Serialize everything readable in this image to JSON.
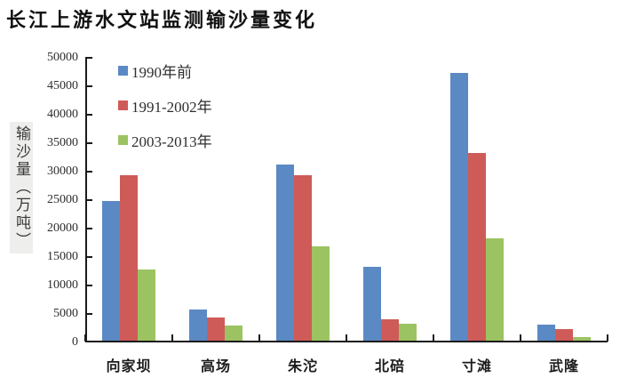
{
  "title": "长江上游水文站监测输沙量变化",
  "chart_data": {
    "type": "bar",
    "title": "长江上游水文站监测输沙量变化",
    "ylabel": "输沙量（万吨）",
    "xlabel": "",
    "categories": [
      "向家坝",
      "高场",
      "朱沱",
      "北碚",
      "寸滩",
      "武隆"
    ],
    "series": [
      {
        "name": "1990年前",
        "color": "#5b89c4",
        "values": [
          24500,
          5500,
          31000,
          13000,
          47000,
          2800
        ]
      },
      {
        "name": "1991-2002年",
        "color": "#cf5b58",
        "values": [
          29000,
          4000,
          29000,
          3700,
          33000,
          2000
        ]
      },
      {
        "name": "2003-2013年",
        "color": "#9cc361",
        "values": [
          12500,
          2700,
          16500,
          3000,
          18000,
          700
        ]
      }
    ],
    "ylim": [
      0,
      50000
    ],
    "ytick_step": 5000,
    "ytick_labels": [
      "0",
      "5000",
      "10000",
      "15000",
      "20000",
      "25000",
      "30000",
      "35000",
      "40000",
      "45000",
      "50000"
    ],
    "grid": false,
    "legend_position": "top-left-inside",
    "axis_color": "#1a1a1a"
  }
}
